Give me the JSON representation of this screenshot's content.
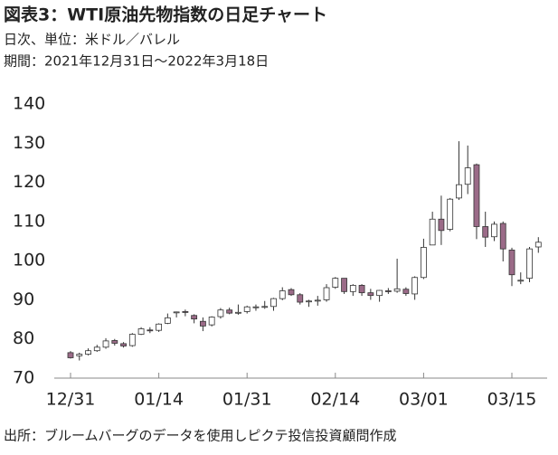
{
  "title": "図表3：WTI原油先物指数の日足チャート",
  "subtitle": [
    "日次、単位：米ドル／バレル",
    "期間：2021年12月31日～2022年3月18日"
  ],
  "source": "出所：ブルームバーグのデータを使用しピクテ投信投資顧問作成",
  "chart_data": {
    "type": "candlestick",
    "categories": [
      "12/31",
      null,
      null,
      null,
      null,
      null,
      null,
      null,
      null,
      null,
      "01/14",
      null,
      null,
      null,
      null,
      null,
      null,
      null,
      null,
      null,
      "01/31",
      null,
      null,
      null,
      null,
      null,
      null,
      null,
      null,
      null,
      "02/14",
      null,
      null,
      null,
      null,
      null,
      null,
      null,
      null,
      null,
      "03/01",
      null,
      null,
      null,
      null,
      null,
      null,
      null,
      null,
      null,
      "03/15",
      null,
      null,
      null
    ],
    "open": [
      76.5,
      75.7,
      76.1,
      77.0,
      77.9,
      79.6,
      78.8,
      78.3,
      81.2,
      82.3,
      82.2,
      84.0,
      86.7,
      87.0,
      86.0,
      84.5,
      83.6,
      85.7,
      87.4,
      86.7,
      87.0,
      88.2,
      88.2,
      88.3,
      90.3,
      92.6,
      91.3,
      89.5,
      89.7,
      90.0,
      93.2,
      95.5,
      92.1,
      93.7,
      91.8,
      91.1,
      92.3,
      92.2,
      92.7,
      91.5,
      95.7,
      104.0,
      110.6,
      108.0,
      116.0,
      119.5,
      124.5,
      108.7,
      106.1,
      109.5,
      102.7,
      95.0,
      95.5,
      103.5
    ],
    "high": [
      76.9,
      76.5,
      77.6,
      78.5,
      80.2,
      80.0,
      79.2,
      81.5,
      83.0,
      83.0,
      84.0,
      86.5,
      87.0,
      87.5,
      86.3,
      85.5,
      85.8,
      87.9,
      88.0,
      88.8,
      88.5,
      88.8,
      89.7,
      90.5,
      93.2,
      93.0,
      91.7,
      90.0,
      91.0,
      94.0,
      95.8,
      95.5,
      94.0,
      94.0,
      92.8,
      92.5,
      93.0,
      100.5,
      93.2,
      96.0,
      105.6,
      112.5,
      116.6,
      116.0,
      130.5,
      129.4,
      124.8,
      112.5,
      110.0,
      110.0,
      103.3,
      97.0,
      103.5,
      106.0
    ],
    "low": [
      75.0,
      74.5,
      75.8,
      76.7,
      77.5,
      78.3,
      77.8,
      78.0,
      81.0,
      81.5,
      81.8,
      83.8,
      85.5,
      85.8,
      84.0,
      82.0,
      83.2,
      85.2,
      86.3,
      86.2,
      86.5,
      87.2,
      87.7,
      87.2,
      89.9,
      91.0,
      88.8,
      88.2,
      88.5,
      89.5,
      92.8,
      91.5,
      91.0,
      91.0,
      90.0,
      89.5,
      91.5,
      91.8,
      91.0,
      90.0,
      95.3,
      104.0,
      104.0,
      107.5,
      115.5,
      117.0,
      105.5,
      103.5,
      105.0,
      99.8,
      93.5,
      94.0,
      94.5,
      102.0
    ],
    "close": [
      75.2,
      76.1,
      77.0,
      77.9,
      79.5,
      78.9,
      78.2,
      81.2,
      82.6,
      82.1,
      83.8,
      85.4,
      86.9,
      86.9,
      85.1,
      83.3,
      85.6,
      87.4,
      86.6,
      86.8,
      88.2,
      88.2,
      88.3,
      90.3,
      92.3,
      91.3,
      89.4,
      89.7,
      89.9,
      93.1,
      95.5,
      92.1,
      93.7,
      91.8,
      91.1,
      92.4,
      92.1,
      92.8,
      91.6,
      95.7,
      103.4,
      110.6,
      107.7,
      115.7,
      119.4,
      123.7,
      108.7,
      106.0,
      109.3,
      103.0,
      96.4,
      95.0,
      103.0,
      104.7
    ],
    "up_color": "#ffffff",
    "down_color": "#9b6b88",
    "ylim": [
      70,
      140
    ],
    "yticks": [
      70,
      80,
      90,
      100,
      110,
      120,
      130,
      140
    ],
    "grid": false
  }
}
